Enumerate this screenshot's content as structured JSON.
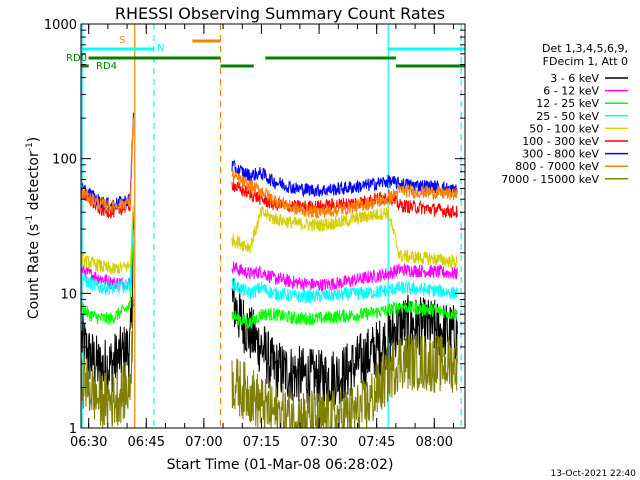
{
  "chart_data": {
    "type": "line",
    "title": "RHESSI Observing Summary Count Rates",
    "xlabel": "Start Time (01-Mar-08 06:28:02)",
    "ylabel_main": "Count Rate (s",
    "ylabel_sup": "-1",
    "ylabel_tail": " detector",
    "ylabel_close": ")",
    "yscale": "log",
    "ylim": [
      1,
      1000
    ],
    "xlim_minutes": [
      6.25,
      6.25,
      0
    ],
    "xrange_hours": [
      6.4667,
      8.1333
    ],
    "x_ticks": [
      {
        "label": "06:30",
        "t": 6.5
      },
      {
        "label": "06:45",
        "t": 6.75
      },
      {
        "label": "07:00",
        "t": 7.0
      },
      {
        "label": "07:15",
        "t": 7.25
      },
      {
        "label": "07:30",
        "t": 7.5
      },
      {
        "label": "07:45",
        "t": 7.75
      },
      {
        "label": "08:00",
        "t": 8.0
      }
    ],
    "y_ticks": [
      {
        "label": "1",
        "v": 1
      },
      {
        "label": "10",
        "v": 10
      },
      {
        "label": "100",
        "v": 100
      },
      {
        "label": "1000",
        "v": 1000
      }
    ],
    "legend_header": [
      "Det 1,3,4,5,6,9,",
      "FDecim 1, Att 0"
    ],
    "timestamp": "13-Oct-2021 22:40",
    "flags": {
      "S_label": "S",
      "N_label": "N",
      "RD0_label": "RD0",
      "RD4_label": "RD4",
      "S_color": "#ff8000",
      "N_color": "#00ffff",
      "RD_color": "#007f00",
      "S_intervals": [
        [
          6.95,
          7.0722
        ]
      ],
      "N_intervals": [
        [
          6.4667,
          6.7833
        ],
        [
          7.8,
          8.1333
        ]
      ],
      "RD0_intervals": [
        [
          6.5,
          7.0722
        ],
        [
          7.0722,
          7.2167
        ],
        [
          7.2667,
          7.8333
        ],
        [
          7.8333,
          8.1333
        ]
      ],
      "RD4_intervals": [
        [
          6.4667,
          6.5
        ],
        [
          6.5,
          6.5833
        ]
      ]
    },
    "boundaries": [
      {
        "t": 6.4717,
        "color": "#00ffff",
        "style": "solid"
      },
      {
        "t": 6.7,
        "color": "#ff8000",
        "style": "solid"
      },
      {
        "t": 6.7833,
        "color": "#00ffff",
        "style": "dashed"
      },
      {
        "t": 7.0722,
        "color": "#ff8000",
        "style": "dashed"
      },
      {
        "t": 7.8,
        "color": "#00ffff",
        "style": "solid"
      },
      {
        "t": 8.1167,
        "color": "#00ffff",
        "style": "dashed"
      }
    ],
    "gap": [
      6.6944,
      7.1222
    ],
    "series": [
      {
        "name": "3 - 6 keV",
        "color": "#000000",
        "points": [
          [
            6.47,
            4.5
          ],
          [
            6.5,
            3.5
          ],
          [
            6.55,
            2.8
          ],
          [
            6.6,
            3.0
          ],
          [
            6.68,
            4.0
          ],
          [
            6.69,
            10
          ],
          [
            6.694,
            40
          ],
          [
            7.122,
            9
          ],
          [
            7.15,
            7
          ],
          [
            7.2,
            5
          ],
          [
            7.25,
            4
          ],
          [
            7.3,
            2.8
          ],
          [
            7.4,
            2.5
          ],
          [
            7.5,
            2.3
          ],
          [
            7.6,
            2.5
          ],
          [
            7.7,
            3.3
          ],
          [
            7.8,
            4.5
          ],
          [
            7.85,
            6
          ],
          [
            8.0,
            5.5
          ],
          [
            8.1,
            5
          ]
        ]
      },
      {
        "name": "6 - 12 keV",
        "color": "#ff00ff",
        "points": [
          [
            6.47,
            15
          ],
          [
            6.5,
            14
          ],
          [
            6.55,
            13
          ],
          [
            6.6,
            12
          ],
          [
            6.68,
            12
          ],
          [
            6.694,
            40
          ],
          [
            7.122,
            16
          ],
          [
            7.15,
            15
          ],
          [
            7.2,
            14
          ],
          [
            7.25,
            14.5
          ],
          [
            7.3,
            13
          ],
          [
            7.4,
            12
          ],
          [
            7.5,
            11.5
          ],
          [
            7.6,
            12
          ],
          [
            7.7,
            13
          ],
          [
            7.8,
            14
          ],
          [
            7.85,
            15
          ],
          [
            8.0,
            14.5
          ],
          [
            8.1,
            14
          ]
        ]
      },
      {
        "name": "12 - 25 keV",
        "color": "#00ff00",
        "points": [
          [
            6.47,
            8
          ],
          [
            6.5,
            7
          ],
          [
            6.55,
            6.5
          ],
          [
            6.6,
            6.5
          ],
          [
            6.68,
            8
          ],
          [
            6.694,
            30
          ],
          [
            7.122,
            7
          ],
          [
            7.15,
            6.5
          ],
          [
            7.2,
            6
          ],
          [
            7.25,
            7
          ],
          [
            7.3,
            7
          ],
          [
            7.4,
            6.5
          ],
          [
            7.5,
            6.5
          ],
          [
            7.6,
            6.8
          ],
          [
            7.7,
            7
          ],
          [
            7.8,
            7.5
          ],
          [
            7.85,
            8
          ],
          [
            8.0,
            7.5
          ],
          [
            8.1,
            7
          ]
        ]
      },
      {
        "name": "25 - 50 keV",
        "color": "#00ffff",
        "points": [
          [
            6.47,
            13
          ],
          [
            6.5,
            12
          ],
          [
            6.55,
            11
          ],
          [
            6.6,
            11
          ],
          [
            6.68,
            11.5
          ],
          [
            6.694,
            40
          ],
          [
            7.122,
            12
          ],
          [
            7.15,
            11
          ],
          [
            7.2,
            10
          ],
          [
            7.25,
            11
          ],
          [
            7.3,
            10
          ],
          [
            7.4,
            9.5
          ],
          [
            7.5,
            9.5
          ],
          [
            7.6,
            9.8
          ],
          [
            7.7,
            10
          ],
          [
            7.8,
            10.5
          ],
          [
            7.85,
            11
          ],
          [
            8.0,
            10.5
          ],
          [
            8.1,
            10
          ]
        ]
      },
      {
        "name": "50 - 100 keV",
        "color": "#d4d000",
        "points": [
          [
            6.47,
            18
          ],
          [
            6.5,
            17
          ],
          [
            6.55,
            16
          ],
          [
            6.6,
            15
          ],
          [
            6.68,
            16
          ],
          [
            6.694,
            45
          ],
          [
            7.122,
            25
          ],
          [
            7.15,
            24
          ],
          [
            7.2,
            22
          ],
          [
            7.25,
            40
          ],
          [
            7.3,
            36
          ],
          [
            7.4,
            33
          ],
          [
            7.5,
            32
          ],
          [
            7.6,
            34
          ],
          [
            7.7,
            37
          ],
          [
            7.8,
            40
          ],
          [
            7.85,
            19
          ],
          [
            8.0,
            18
          ],
          [
            8.1,
            17
          ]
        ]
      },
      {
        "name": "100 - 300 keV",
        "color": "#ff0000",
        "points": [
          [
            6.47,
            55
          ],
          [
            6.5,
            50
          ],
          [
            6.55,
            42
          ],
          [
            6.6,
            40
          ],
          [
            6.68,
            45
          ],
          [
            6.694,
            180
          ],
          [
            7.122,
            65
          ],
          [
            7.15,
            60
          ],
          [
            7.2,
            55
          ],
          [
            7.25,
            50
          ],
          [
            7.3,
            46
          ],
          [
            7.4,
            44
          ],
          [
            7.5,
            44
          ],
          [
            7.6,
            46
          ],
          [
            7.7,
            48
          ],
          [
            7.8,
            53
          ],
          [
            7.85,
            45
          ],
          [
            8.0,
            42
          ],
          [
            8.1,
            40
          ]
        ]
      },
      {
        "name": "300 - 800 keV",
        "color": "#0000ff",
        "points": [
          [
            6.47,
            60
          ],
          [
            6.5,
            55
          ],
          [
            6.55,
            48
          ],
          [
            6.6,
            45
          ],
          [
            6.68,
            50
          ],
          [
            6.694,
            220
          ],
          [
            7.122,
            88
          ],
          [
            7.15,
            82
          ],
          [
            7.2,
            75
          ],
          [
            7.25,
            78
          ],
          [
            7.3,
            68
          ],
          [
            7.4,
            60
          ],
          [
            7.5,
            58
          ],
          [
            7.6,
            60
          ],
          [
            7.7,
            63
          ],
          [
            7.8,
            68
          ],
          [
            7.85,
            65
          ],
          [
            8.0,
            62
          ],
          [
            8.1,
            58
          ]
        ]
      },
      {
        "name": "800 - 7000 keV",
        "color": "#ff8000",
        "points": [
          [
            6.47,
            55
          ],
          [
            6.5,
            52
          ],
          [
            6.55,
            46
          ],
          [
            6.6,
            44
          ],
          [
            6.68,
            48
          ],
          [
            6.694,
            200
          ],
          [
            7.122,
            75
          ],
          [
            7.15,
            70
          ],
          [
            7.2,
            62
          ],
          [
            7.25,
            58
          ],
          [
            7.3,
            50
          ],
          [
            7.4,
            42
          ],
          [
            7.5,
            40
          ],
          [
            7.6,
            42
          ],
          [
            7.7,
            46
          ],
          [
            7.8,
            50
          ],
          [
            7.85,
            58
          ],
          [
            8.0,
            56
          ],
          [
            8.1,
            54
          ]
        ]
      },
      {
        "name": "7000 - 15000 keV",
        "color": "#7f7f00",
        "points": [
          [
            6.47,
            2.4
          ],
          [
            6.5,
            2.0
          ],
          [
            6.55,
            1.6
          ],
          [
            6.6,
            1.6
          ],
          [
            6.68,
            2.0
          ],
          [
            6.694,
            8
          ],
          [
            7.122,
            2.2
          ],
          [
            7.15,
            2.0
          ],
          [
            7.2,
            1.8
          ],
          [
            7.25,
            1.5
          ],
          [
            7.3,
            1.3
          ],
          [
            7.4,
            1.2
          ],
          [
            7.5,
            1.15
          ],
          [
            7.6,
            1.2
          ],
          [
            7.7,
            1.4
          ],
          [
            7.8,
            2.5
          ],
          [
            7.85,
            3.2
          ],
          [
            8.0,
            3.0
          ],
          [
            8.1,
            3.0
          ]
        ]
      }
    ]
  }
}
